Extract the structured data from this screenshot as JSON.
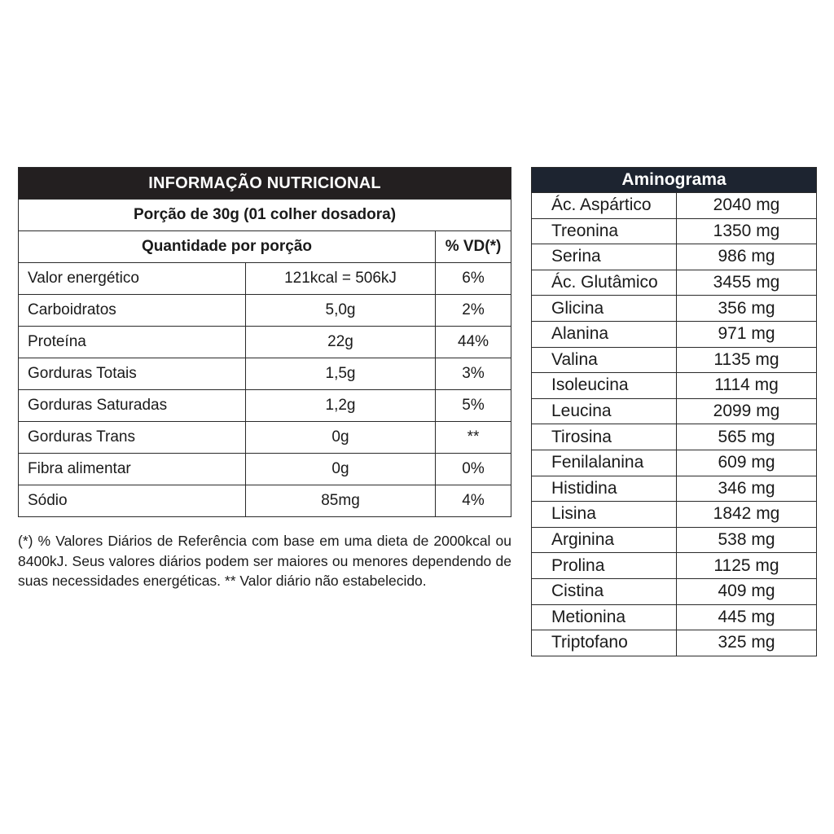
{
  "nutrition": {
    "title": "INFORMAÇÃO NUTRICIONAL",
    "portion": "Porção de 30g (01 colher dosadora)",
    "col_quantity": "Quantidade por porção",
    "col_vd": "% VD(*)",
    "rows": [
      {
        "name": "Valor energético",
        "amount": "121kcal = 506kJ",
        "vd": "6%"
      },
      {
        "name": "Carboidratos",
        "amount": "5,0g",
        "vd": "2%"
      },
      {
        "name": "Proteína",
        "amount": "22g",
        "vd": "44%"
      },
      {
        "name": "Gorduras Totais",
        "amount": "1,5g",
        "vd": "3%"
      },
      {
        "name": "Gorduras Saturadas",
        "amount": "1,2g",
        "vd": "5%"
      },
      {
        "name": "Gorduras Trans",
        "amount": "0g",
        "vd": "**"
      },
      {
        "name": "Fibra alimentar",
        "amount": "0g",
        "vd": "0%"
      },
      {
        "name": "Sódio",
        "amount": "85mg",
        "vd": "4%"
      }
    ],
    "footnote": "(*) % Valores Diários de Referência com base em uma dieta de 2000kcal ou 8400kJ. Seus valores diários podem ser maiores ou menores dependendo de suas necessidades energéticas. ** Valor diário não estabelecido."
  },
  "aminogram": {
    "title": "Aminograma",
    "rows": [
      {
        "name": "Ác. Aspártico",
        "amount": "2040 mg"
      },
      {
        "name": "Treonina",
        "amount": "1350 mg"
      },
      {
        "name": "Serina",
        "amount": "986 mg"
      },
      {
        "name": "Ác. Glutâmico",
        "amount": "3455 mg"
      },
      {
        "name": "Glicina",
        "amount": "356 mg"
      },
      {
        "name": "Alanina",
        "amount": "971 mg"
      },
      {
        "name": "Valina",
        "amount": "1135 mg"
      },
      {
        "name": "Isoleucina",
        "amount": "1114 mg"
      },
      {
        "name": "Leucina",
        "amount": "2099 mg"
      },
      {
        "name": "Tirosina",
        "amount": "565 mg"
      },
      {
        "name": "Fenilalanina",
        "amount": "609 mg"
      },
      {
        "name": "Histidina",
        "amount": "346 mg"
      },
      {
        "name": "Lisina",
        "amount": "1842 mg"
      },
      {
        "name": "Arginina",
        "amount": "538 mg"
      },
      {
        "name": "Prolina",
        "amount": "1125 mg"
      },
      {
        "name": "Cistina",
        "amount": "409 mg"
      },
      {
        "name": "Metionina",
        "amount": "445 mg"
      },
      {
        "name": "Triptofano",
        "amount": "325 mg"
      }
    ]
  }
}
